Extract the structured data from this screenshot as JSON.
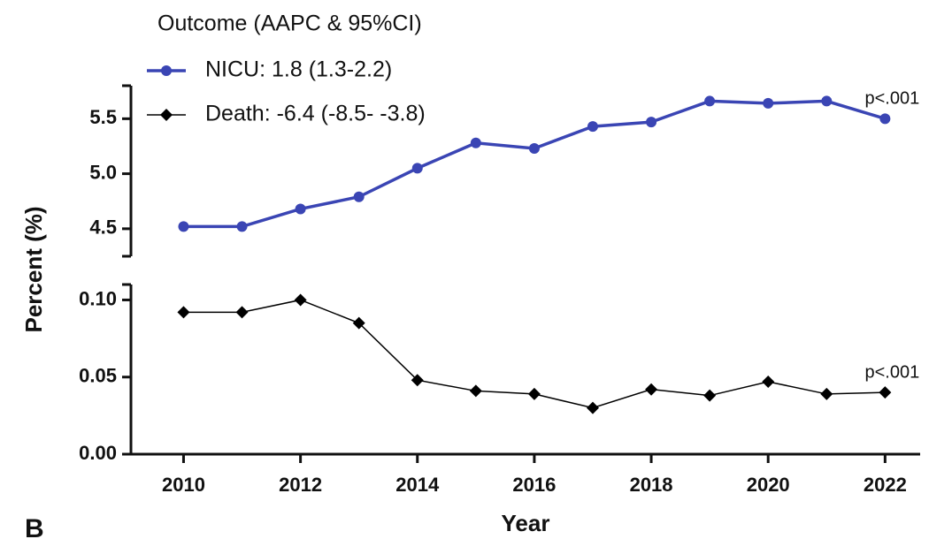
{
  "chart_data": {
    "type": "line",
    "title": "Outcome (AAPC & 95%CI)",
    "x_label": "Year",
    "y_label": "Percent  (%)",
    "panel_label": "B",
    "x": [
      2010,
      2011,
      2012,
      2013,
      2014,
      2015,
      2016,
      2017,
      2018,
      2019,
      2020,
      2021,
      2022
    ],
    "xlim": [
      2009.1,
      2022.6
    ],
    "xticks": [
      2010,
      2012,
      2014,
      2016,
      2018,
      2020,
      2022
    ],
    "panels": [
      {
        "ylim": [
          4.25,
          5.8
        ],
        "yticks": [
          {
            "value": 4.5,
            "label": "4.5"
          },
          {
            "value": 5,
            "label": "5.0"
          },
          {
            "value": 5.5,
            "label": "5.5"
          }
        ],
        "annotation": "p<.001",
        "series": [
          {
            "name": "NICU: 1.8 (1.3-2.2)",
            "color": "#3a45b4",
            "marker": "circle",
            "values": [
              4.52,
              4.52,
              4.68,
              4.79,
              5.05,
              5.28,
              5.23,
              5.43,
              5.47,
              5.66,
              5.64,
              5.66,
              5.5
            ]
          }
        ]
      },
      {
        "ylim": [
          0,
          0.11
        ],
        "yticks": [
          {
            "value": 0,
            "label": "0.00"
          },
          0.05,
          {
            "value": 0.1,
            "label": "0.10"
          }
        ],
        "annotation": "p<.001",
        "series": [
          {
            "name": "Death: -6.4 (-8.5- -3.8)",
            "color": "#000000",
            "marker": "diamond",
            "values": [
              0.092,
              0.092,
              0.1,
              0.085,
              0.048,
              0.041,
              0.039,
              0.03,
              0.042,
              0.038,
              0.047,
              0.039,
              0.04
            ]
          }
        ]
      }
    ]
  }
}
